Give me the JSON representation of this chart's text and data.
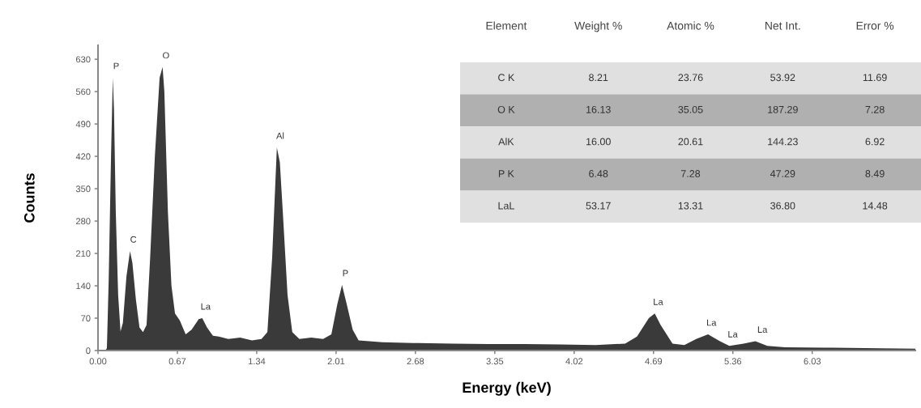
{
  "chart_data": [
    {
      "type": "area",
      "xlabel": "Energy (keV)",
      "ylabel": "Counts",
      "xlim": [
        0,
        6.9
      ],
      "xticks": [
        {
          "value": 0,
          "label": "0.00"
        },
        0.67,
        1.34,
        2.01,
        2.68,
        3.35,
        4.02,
        4.69,
        5.36,
        6.03
      ],
      "ylim": [
        0,
        660
      ],
      "yticks": [
        0,
        70,
        140,
        210,
        280,
        350,
        420,
        490,
        560,
        630
      ],
      "grid": false,
      "legend": false,
      "series": [
        {
          "color": "#3a3a3a",
          "x": [
            0.0,
            0.06,
            0.075,
            0.09,
            0.11,
            0.125,
            0.135,
            0.15,
            0.17,
            0.19,
            0.21,
            0.24,
            0.27,
            0.29,
            0.32,
            0.35,
            0.38,
            0.41,
            0.44,
            0.48,
            0.52,
            0.545,
            0.56,
            0.59,
            0.62,
            0.65,
            0.69,
            0.74,
            0.79,
            0.85,
            0.88,
            0.92,
            0.97,
            1.02,
            1.1,
            1.2,
            1.3,
            1.38,
            1.43,
            1.47,
            1.51,
            1.535,
            1.56,
            1.6,
            1.64,
            1.7,
            1.8,
            1.9,
            1.97,
            2.02,
            2.06,
            2.1,
            2.15,
            2.2,
            2.4,
            2.7,
            3.0,
            3.3,
            3.6,
            3.9,
            4.2,
            4.45,
            4.55,
            4.65,
            4.7,
            4.75,
            4.85,
            4.95,
            5.05,
            5.15,
            5.25,
            5.33,
            5.45,
            5.55,
            5.65,
            5.8,
            6.2,
            6.6,
            6.9
          ],
          "values": [
            0,
            0,
            5,
            150,
            420,
            590,
            520,
            300,
            120,
            41,
            60,
            160,
            215,
            190,
            110,
            50,
            40,
            55,
            200,
            420,
            590,
            613,
            560,
            300,
            140,
            80,
            65,
            35,
            45,
            68,
            70,
            50,
            32,
            30,
            25,
            28,
            22,
            25,
            40,
            200,
            439,
            407,
            300,
            120,
            40,
            25,
            28,
            25,
            35,
            100,
            142,
            100,
            45,
            22,
            18,
            16,
            15,
            14,
            14,
            13,
            12,
            15,
            30,
            70,
            80,
            55,
            15,
            12,
            25,
            35,
            20,
            10,
            15,
            20,
            10,
            7,
            6,
            5,
            4
          ]
        }
      ],
      "annotations": [
        {
          "text": "P",
          "x": 0.125,
          "y": 590
        },
        {
          "text": "C",
          "x": 0.27,
          "y": 215
        },
        {
          "text": "O",
          "x": 0.545,
          "y": 613
        },
        {
          "text": "La",
          "x": 0.88,
          "y": 70
        },
        {
          "text": "Al",
          "x": 1.51,
          "y": 439
        },
        {
          "text": "P",
          "x": 2.06,
          "y": 142
        },
        {
          "text": "La",
          "x": 4.7,
          "y": 80
        },
        {
          "text": "La",
          "x": 5.15,
          "y": 35
        },
        {
          "text": "La",
          "x": 5.33,
          "y": 10
        },
        {
          "text": "La",
          "x": 5.58,
          "y": 20
        }
      ]
    },
    {
      "type": "other",
      "categories": [
        "Element",
        "Weight %",
        "Atomic %",
        "Net Int.",
        "Error %"
      ],
      "y_categories": [
        "C K",
        "O K",
        "AlK",
        "P K",
        "LaL"
      ],
      "cell_labels": [
        [
          "8.21",
          "23.76",
          "53.92",
          "11.69"
        ],
        [
          "16.13",
          "35.05",
          "187.29",
          "7.28"
        ],
        [
          "16.00",
          "20.61",
          "144.23",
          "6.92"
        ],
        [
          "6.48",
          "7.28",
          "47.29",
          "8.49"
        ],
        [
          "53.17",
          "13.31",
          "36.80",
          "14.48"
        ]
      ],
      "colors": [
        "#e0e0e0",
        "#b0b0b0",
        "#e0e0e0",
        "#b0b0b0",
        "#e0e0e0"
      ]
    }
  ]
}
